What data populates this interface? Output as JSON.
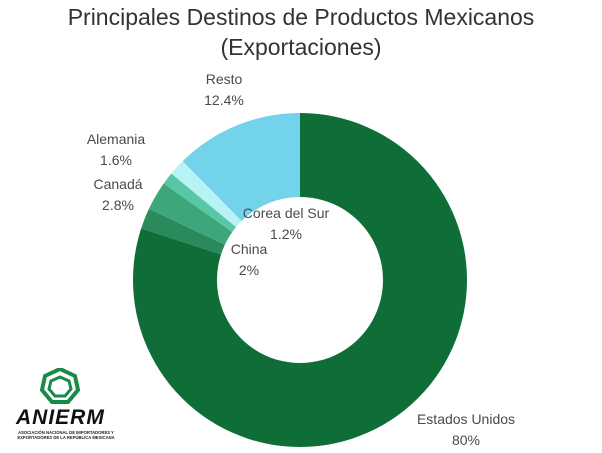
{
  "title_line1": "Principales Destinos de Productos Mexicanos",
  "title_line2": "(Exportaciones)",
  "chart_data": {
    "type": "pie",
    "variant": "donut",
    "title": "Principales Destinos de Productos Mexicanos (Exportaciones)",
    "slices": [
      {
        "label": "Estados Unidos",
        "value": 80,
        "display": "80%",
        "color": "#0f6e38"
      },
      {
        "label": "China",
        "value": 2,
        "display": "2%",
        "color": "#2a8a5c"
      },
      {
        "label": "Canadá",
        "value": 2.8,
        "display": "2.8%",
        "color": "#3ea67b"
      },
      {
        "label": "Corea del Sur",
        "value": 1.2,
        "display": "1.2%",
        "color": "#57c7a6"
      },
      {
        "label": "Alemania",
        "value": 1.6,
        "display": "1.6%",
        "color": "#b6f2f6"
      },
      {
        "label": "Resto",
        "value": 12.4,
        "display": "12.4%",
        "color": "#73d3ea"
      }
    ]
  },
  "logo": {
    "name": "ANIERM",
    "subtitle": "ASOCIACIÓN NACIONAL DE IMPORTADORES Y EXPORTADORES DE LA REPÚBLICA MEXICANA",
    "color": "#1a8a4a"
  }
}
